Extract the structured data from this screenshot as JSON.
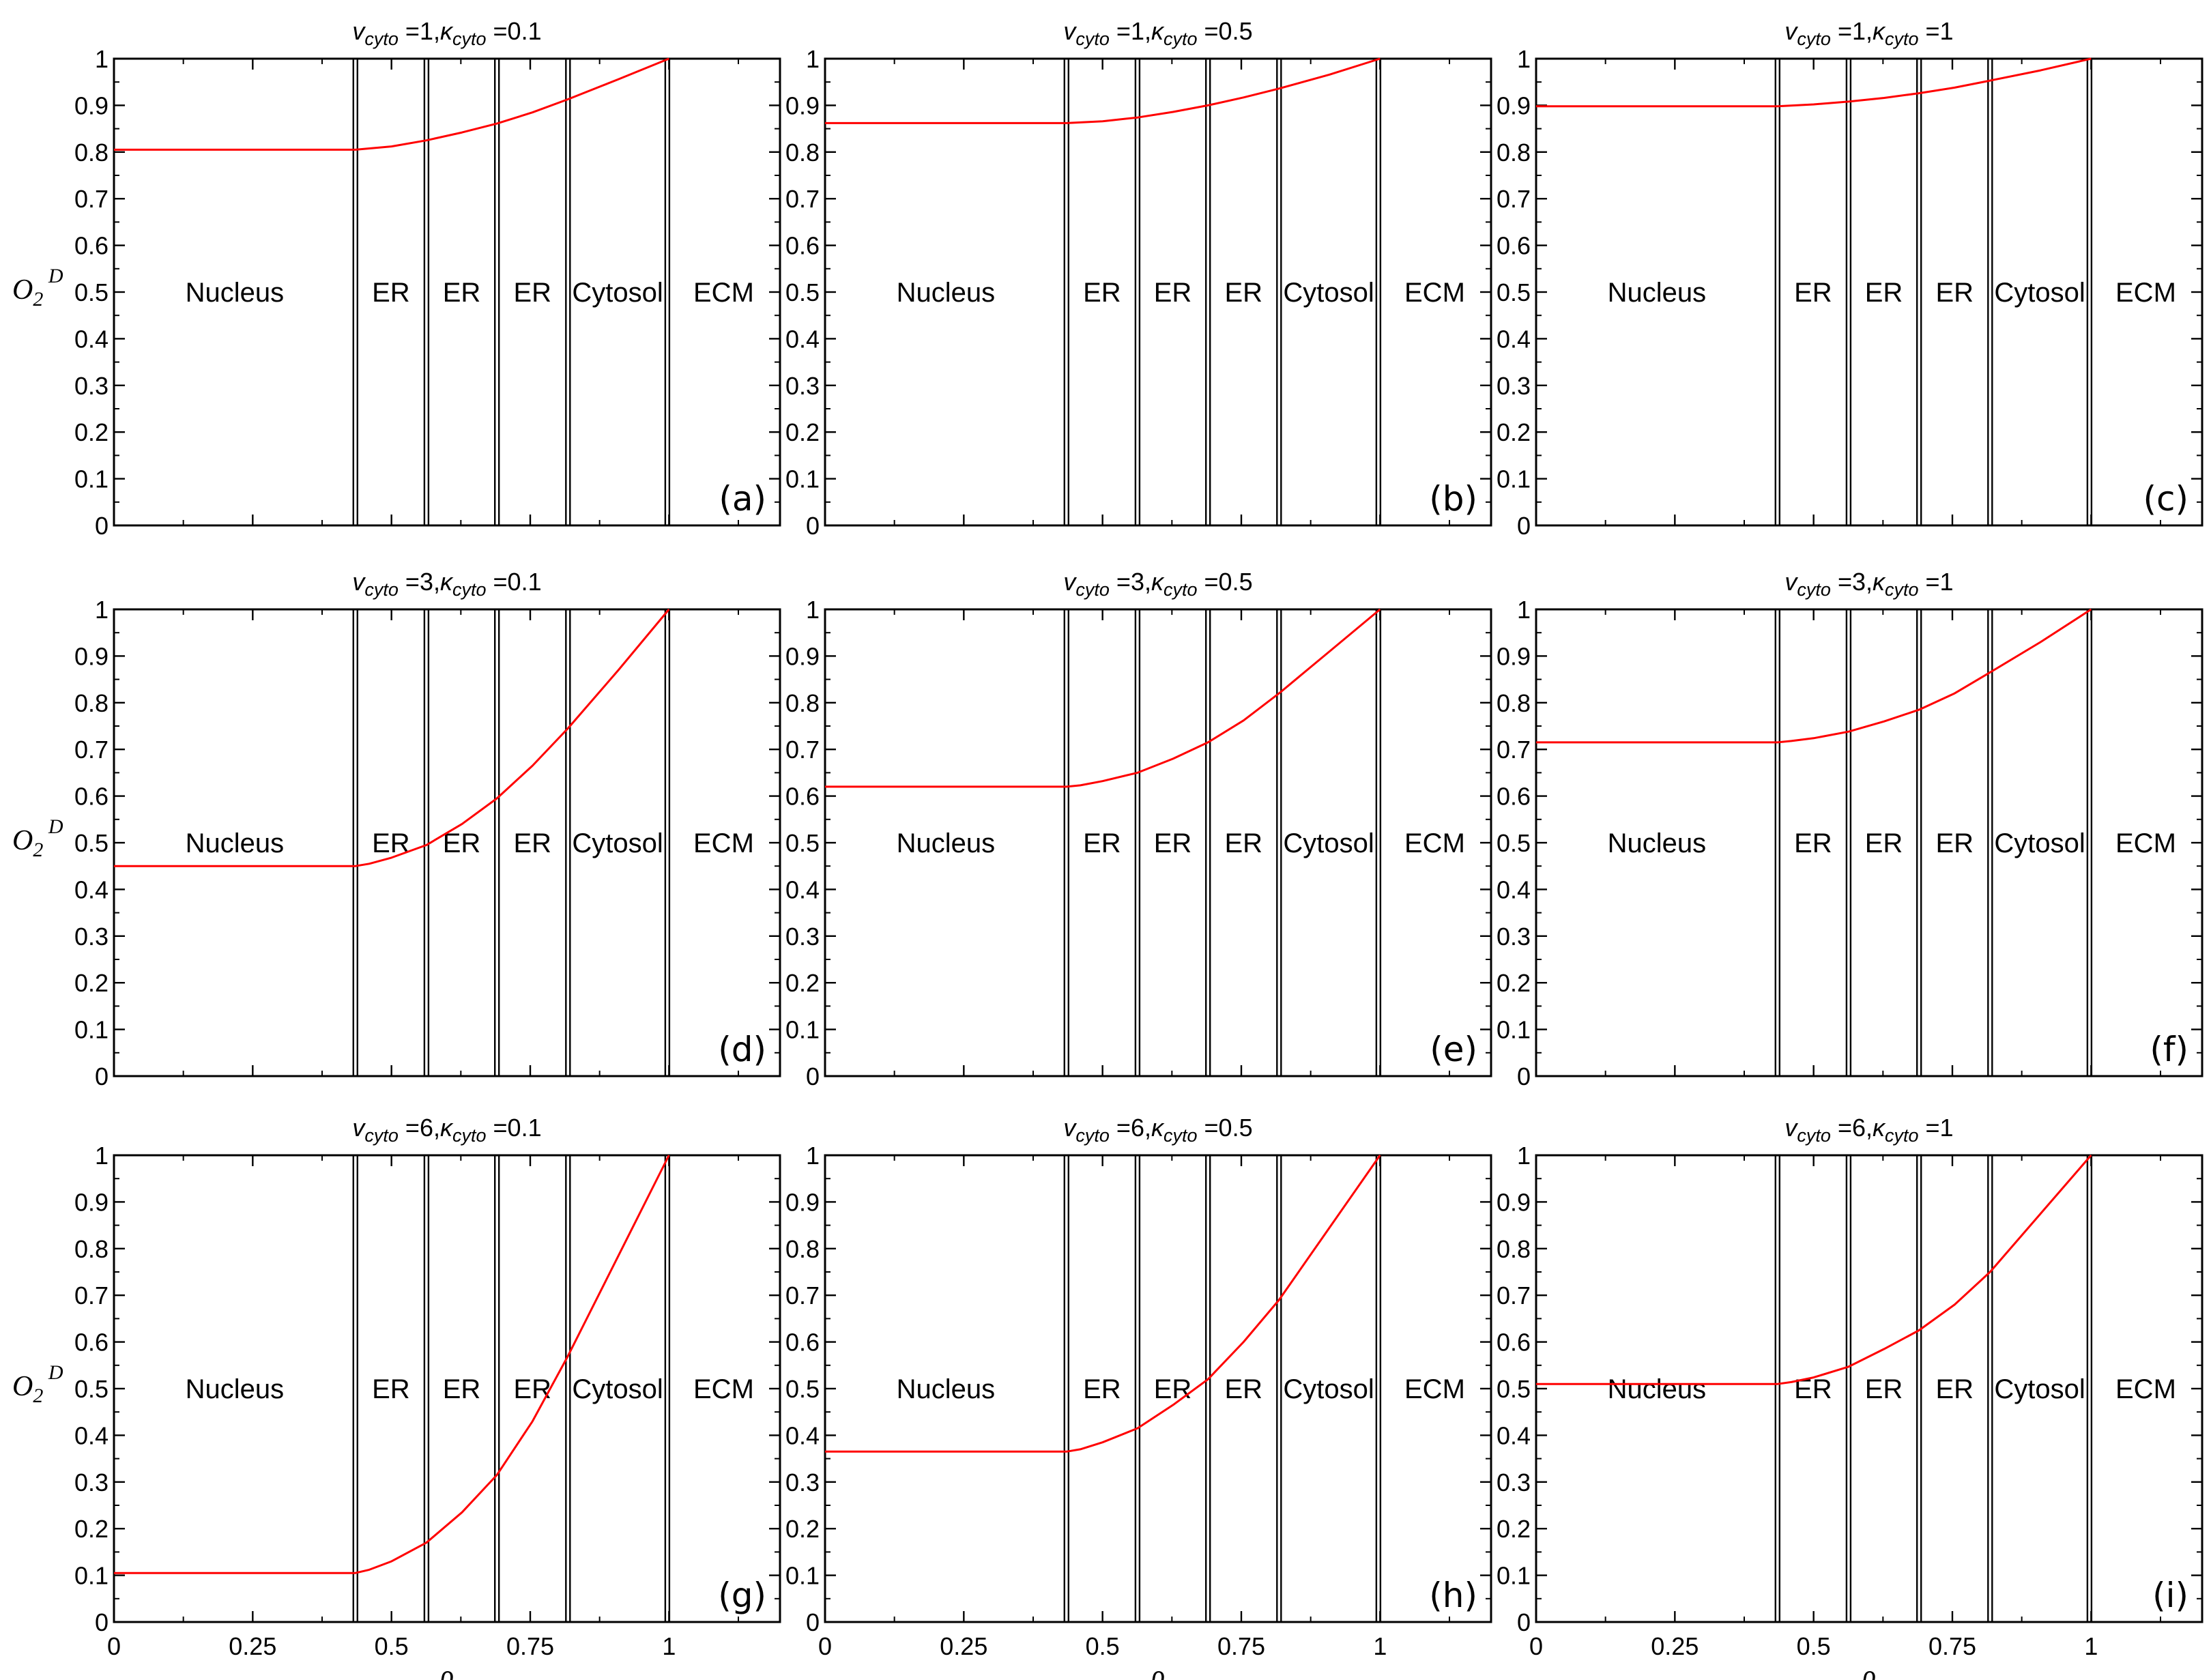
{
  "figure": {
    "ylabel": {
      "main": "O",
      "sub": "2",
      "sup": "D"
    },
    "xlabel": "ρ"
  },
  "chart_data": [
    {
      "type": "line",
      "panel": "(a)",
      "title": {
        "v_sym": "v",
        "v_sub": "cyto",
        "v_val": "=1,",
        "k_sym": "κ",
        "k_sub": "cyto",
        "k_val": "=0.1"
      },
      "xlim": [
        0,
        1.2
      ],
      "ylim": [
        0,
        1
      ],
      "xticks": [
        "0",
        "0.25",
        "0.5",
        "0.75",
        "1"
      ],
      "yticks": [
        "0",
        "0.1",
        "0.2",
        "0.3",
        "0.4",
        "0.5",
        "0.6",
        "0.7",
        "0.8",
        "0.9",
        "1"
      ],
      "boundaries": [
        0.435,
        0.563,
        0.69,
        0.818,
        0.997
      ],
      "regions": [
        "Nucleus",
        "ER",
        "ER",
        "ER",
        "Cytosol",
        "ECM"
      ],
      "series": [
        {
          "color": "#ff0000",
          "x": [
            0,
            0.435,
            0.5,
            0.563,
            0.627,
            0.69,
            0.754,
            0.818,
            0.909,
            1.0
          ],
          "y": [
            0.805,
            0.805,
            0.812,
            0.825,
            0.842,
            0.861,
            0.885,
            0.913,
            0.956,
            1.0
          ]
        }
      ]
    },
    {
      "type": "line",
      "panel": "(b)",
      "title": {
        "v_sym": "v",
        "v_sub": "cyto",
        "v_val": "=1,",
        "k_sym": "κ",
        "k_sub": "cyto",
        "k_val": "=0.5"
      },
      "xlim": [
        0,
        1.2
      ],
      "ylim": [
        0,
        1
      ],
      "xticks": [
        "0",
        "0.25",
        "0.5",
        "0.75",
        "1"
      ],
      "yticks": [
        "0",
        "0.1",
        "0.2",
        "0.3",
        "0.4",
        "0.5",
        "0.6",
        "0.7",
        "0.8",
        "0.9",
        "1"
      ],
      "boundaries": [
        0.435,
        0.563,
        0.69,
        0.818,
        0.997
      ],
      "regions": [
        "Nucleus",
        "ER",
        "ER",
        "ER",
        "Cytosol",
        "ECM"
      ],
      "series": [
        {
          "color": "#ff0000",
          "x": [
            0,
            0.435,
            0.5,
            0.563,
            0.627,
            0.69,
            0.754,
            0.818,
            0.909,
            1.0
          ],
          "y": [
            0.862,
            0.862,
            0.866,
            0.874,
            0.886,
            0.9,
            0.917,
            0.936,
            0.966,
            1.0
          ]
        }
      ]
    },
    {
      "type": "line",
      "panel": "(c)",
      "title": {
        "v_sym": "v",
        "v_sub": "cyto",
        "v_val": "=1,",
        "k_sym": "κ",
        "k_sub": "cyto",
        "k_val": "=1"
      },
      "xlim": [
        0,
        1.2
      ],
      "ylim": [
        0,
        1
      ],
      "xticks": [
        "0",
        "0.25",
        "0.5",
        "0.75",
        "1"
      ],
      "yticks": [
        "0",
        "0.1",
        "0.2",
        "0.3",
        "0.4",
        "0.5",
        "0.6",
        "0.7",
        "0.8",
        "0.9",
        "1"
      ],
      "boundaries": [
        0.435,
        0.563,
        0.69,
        0.818,
        0.997
      ],
      "regions": [
        "Nucleus",
        "ER",
        "ER",
        "ER",
        "Cytosol",
        "ECM"
      ],
      "series": [
        {
          "color": "#ff0000",
          "x": [
            0,
            0.435,
            0.5,
            0.563,
            0.627,
            0.69,
            0.754,
            0.818,
            0.909,
            1.0
          ],
          "y": [
            0.898,
            0.898,
            0.902,
            0.908,
            0.916,
            0.926,
            0.938,
            0.953,
            0.975,
            1.0
          ]
        }
      ]
    },
    {
      "type": "line",
      "panel": "(d)",
      "title": {
        "v_sym": "v",
        "v_sub": "cyto",
        "v_val": "=3,",
        "k_sym": "κ",
        "k_sub": "cyto",
        "k_val": "=0.1"
      },
      "xlim": [
        0,
        1.2
      ],
      "ylim": [
        0,
        1
      ],
      "xticks": [
        "0",
        "0.25",
        "0.5",
        "0.75",
        "1"
      ],
      "yticks": [
        "0",
        "0.1",
        "0.2",
        "0.3",
        "0.4",
        "0.5",
        "0.6",
        "0.7",
        "0.8",
        "0.9",
        "1"
      ],
      "boundaries": [
        0.435,
        0.563,
        0.69,
        0.818,
        0.997
      ],
      "regions": [
        "Nucleus",
        "ER",
        "ER",
        "ER",
        "Cytosol",
        "ECM"
      ],
      "series": [
        {
          "color": "#ff0000",
          "x": [
            0,
            0.435,
            0.46,
            0.5,
            0.563,
            0.627,
            0.69,
            0.754,
            0.818,
            0.909,
            1.0
          ],
          "y": [
            0.45,
            0.45,
            0.455,
            0.468,
            0.495,
            0.54,
            0.595,
            0.665,
            0.745,
            0.87,
            1.0
          ]
        }
      ]
    },
    {
      "type": "line",
      "panel": "(e)",
      "title": {
        "v_sym": "v",
        "v_sub": "cyto",
        "v_val": "=3,",
        "k_sym": "κ",
        "k_sub": "cyto",
        "k_val": "=0.5"
      },
      "xlim": [
        0,
        1.2
      ],
      "ylim": [
        0,
        1
      ],
      "xticks": [
        "0",
        "0.25",
        "0.5",
        "0.75",
        "1"
      ],
      "yticks": [
        "0",
        "0.1",
        "0.2",
        "0.3",
        "0.4",
        "0.5",
        "0.6",
        "0.7",
        "0.8",
        "0.9",
        "1"
      ],
      "boundaries": [
        0.435,
        0.563,
        0.69,
        0.818,
        0.997
      ],
      "regions": [
        "Nucleus",
        "ER",
        "ER",
        "ER",
        "Cytosol",
        "ECM"
      ],
      "series": [
        {
          "color": "#ff0000",
          "x": [
            0,
            0.435,
            0.46,
            0.5,
            0.563,
            0.627,
            0.69,
            0.754,
            0.818,
            0.909,
            1.0
          ],
          "y": [
            0.62,
            0.62,
            0.623,
            0.632,
            0.65,
            0.68,
            0.715,
            0.762,
            0.82,
            0.91,
            1.0
          ]
        }
      ]
    },
    {
      "type": "line",
      "panel": "(f)",
      "title": {
        "v_sym": "v",
        "v_sub": "cyto",
        "v_val": "=3,",
        "k_sym": "κ",
        "k_sub": "cyto",
        "k_val": "=1"
      },
      "xlim": [
        0,
        1.2
      ],
      "ylim": [
        0,
        1
      ],
      "xticks": [
        "0",
        "0.25",
        "0.5",
        "0.75",
        "1"
      ],
      "yticks": [
        "0",
        "0.1",
        "0.2",
        "0.3",
        "0.4",
        "0.5",
        "0.6",
        "0.7",
        "0.8",
        "0.9",
        "1"
      ],
      "boundaries": [
        0.435,
        0.563,
        0.69,
        0.818,
        0.997
      ],
      "regions": [
        "Nucleus",
        "ER",
        "ER",
        "ER",
        "Cytosol",
        "ECM"
      ],
      "series": [
        {
          "color": "#ff0000",
          "x": [
            0,
            0.435,
            0.46,
            0.5,
            0.563,
            0.627,
            0.69,
            0.754,
            0.818,
            0.909,
            1.0
          ],
          "y": [
            0.715,
            0.715,
            0.718,
            0.724,
            0.738,
            0.76,
            0.785,
            0.82,
            0.865,
            0.93,
            1.0
          ]
        }
      ]
    },
    {
      "type": "line",
      "panel": "(g)",
      "title": {
        "v_sym": "v",
        "v_sub": "cyto",
        "v_val": "=6,",
        "k_sym": "κ",
        "k_sub": "cyto",
        "k_val": "=0.1"
      },
      "xlim": [
        0,
        1.2
      ],
      "ylim": [
        0,
        1
      ],
      "xticks": [
        "0",
        "0.25",
        "0.5",
        "0.75",
        "1"
      ],
      "yticks": [
        "0",
        "0.1",
        "0.2",
        "0.3",
        "0.4",
        "0.5",
        "0.6",
        "0.7",
        "0.8",
        "0.9",
        "1"
      ],
      "boundaries": [
        0.435,
        0.563,
        0.69,
        0.818,
        0.997
      ],
      "regions": [
        "Nucleus",
        "ER",
        "ER",
        "ER",
        "Cytosol",
        "ECM"
      ],
      "series": [
        {
          "color": "#ff0000",
          "x": [
            0,
            0.435,
            0.46,
            0.5,
            0.563,
            0.627,
            0.69,
            0.754,
            0.818,
            0.909,
            1.0
          ],
          "y": [
            0.105,
            0.105,
            0.112,
            0.13,
            0.17,
            0.235,
            0.315,
            0.43,
            0.57,
            0.785,
            1.0
          ]
        }
      ]
    },
    {
      "type": "line",
      "panel": "(h)",
      "title": {
        "v_sym": "v",
        "v_sub": "cyto",
        "v_val": "=6,",
        "k_sym": "κ",
        "k_sub": "cyto",
        "k_val": "=0.5"
      },
      "xlim": [
        0,
        1.2
      ],
      "ylim": [
        0,
        1
      ],
      "xticks": [
        "0",
        "0.25",
        "0.5",
        "0.75",
        "1"
      ],
      "yticks": [
        "0",
        "0.1",
        "0.2",
        "0.3",
        "0.4",
        "0.5",
        "0.6",
        "0.7",
        "0.8",
        "0.9",
        "1"
      ],
      "boundaries": [
        0.435,
        0.563,
        0.69,
        0.818,
        0.997
      ],
      "regions": [
        "Nucleus",
        "ER",
        "ER",
        "ER",
        "Cytosol",
        "ECM"
      ],
      "series": [
        {
          "color": "#ff0000",
          "x": [
            0,
            0.435,
            0.46,
            0.5,
            0.563,
            0.627,
            0.69,
            0.754,
            0.818,
            0.909,
            1.0
          ],
          "y": [
            0.365,
            0.365,
            0.37,
            0.385,
            0.415,
            0.465,
            0.52,
            0.6,
            0.69,
            0.845,
            1.0
          ]
        }
      ]
    },
    {
      "type": "line",
      "panel": "(i)",
      "title": {
        "v_sym": "v",
        "v_sub": "cyto",
        "v_val": "=6,",
        "k_sym": "κ",
        "k_sub": "cyto",
        "k_val": "=1"
      },
      "xlim": [
        0,
        1.2
      ],
      "ylim": [
        0,
        1
      ],
      "xticks": [
        "0",
        "0.25",
        "0.5",
        "0.75",
        "1"
      ],
      "yticks": [
        "0",
        "0.1",
        "0.2",
        "0.3",
        "0.4",
        "0.5",
        "0.6",
        "0.7",
        "0.8",
        "0.9",
        "1"
      ],
      "boundaries": [
        0.435,
        0.563,
        0.69,
        0.818,
        0.997
      ],
      "regions": [
        "Nucleus",
        "ER",
        "ER",
        "ER",
        "Cytosol",
        "ECM"
      ],
      "series": [
        {
          "color": "#ff0000",
          "x": [
            0,
            0.435,
            0.46,
            0.5,
            0.563,
            0.627,
            0.69,
            0.754,
            0.818,
            0.909,
            1.0
          ],
          "y": [
            0.51,
            0.51,
            0.514,
            0.524,
            0.547,
            0.585,
            0.625,
            0.68,
            0.75,
            0.875,
            1.0
          ]
        }
      ]
    }
  ]
}
